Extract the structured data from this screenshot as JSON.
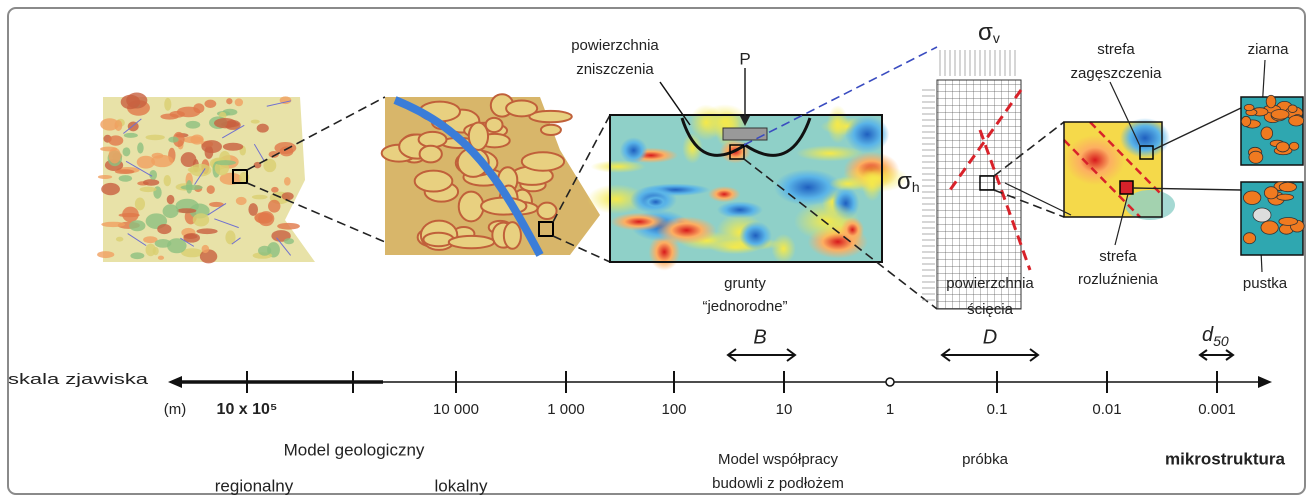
{
  "labels": {
    "failure_surface": [
      "powierzchnia",
      "zniszczenia"
    ],
    "load": "P",
    "sigma_v": {
      "symbol": "σ",
      "subscript": "v"
    },
    "sigma_h": {
      "symbol": "σ",
      "subscript": "h"
    },
    "compaction_zone": [
      "strefa",
      "zagęszczenia"
    ],
    "grains": "ziarna",
    "homogeneous_soil": [
      "grunty",
      "“jednorodne”"
    ],
    "shear_surface": [
      "powierzchnia",
      "ścięcia"
    ],
    "loosening_zone": [
      "strefa",
      "rozluźnienia"
    ],
    "void": "pustka"
  },
  "dimensions": {
    "B": "B",
    "D": "D",
    "d50": {
      "symbol": "d",
      "subscript": "50"
    }
  },
  "scale": {
    "title": "skala zjawiska",
    "unit": "(m)",
    "labels": [
      "10 x 10⁵",
      "10 000",
      "1 000",
      "100",
      "10",
      "1",
      "0.1",
      "0.01",
      "0.001"
    ]
  },
  "models": {
    "geological": "Model geologiczny",
    "regional": "regionalny",
    "local": "lokalny",
    "interaction": [
      "Model współpracy",
      "budowli z podłożem"
    ],
    "sample": "próbka",
    "microstructure": "mikrostruktura"
  }
}
